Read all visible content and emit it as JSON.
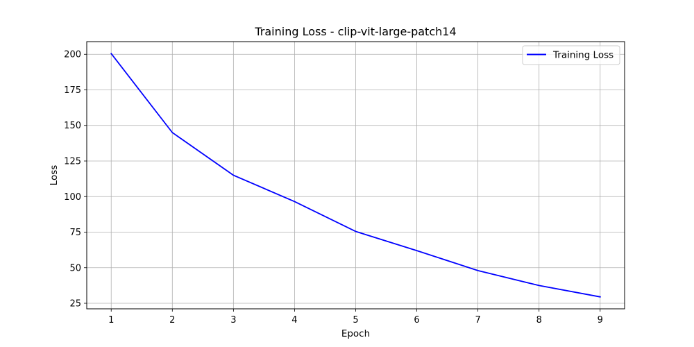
{
  "chart_data": {
    "type": "line",
    "title": "Training Loss - clip-vit-large-patch14",
    "xlabel": "Epoch",
    "ylabel": "Loss",
    "x": [
      1,
      2,
      3,
      4,
      5,
      6,
      7,
      8,
      9
    ],
    "series": [
      {
        "name": "Training Loss",
        "color": "#0000ff",
        "values": [
          200.5,
          145,
          115,
          96.5,
          75.5,
          62,
          48,
          37.5,
          29.5
        ]
      }
    ],
    "xticks": [
      1,
      2,
      3,
      4,
      5,
      6,
      7,
      8,
      9
    ],
    "yticks": [
      25,
      50,
      75,
      100,
      125,
      150,
      175,
      200
    ],
    "xlim": [
      0.6,
      9.4
    ],
    "ylim": [
      21.1,
      208.9
    ],
    "grid": true,
    "legend_position": "top-right"
  }
}
